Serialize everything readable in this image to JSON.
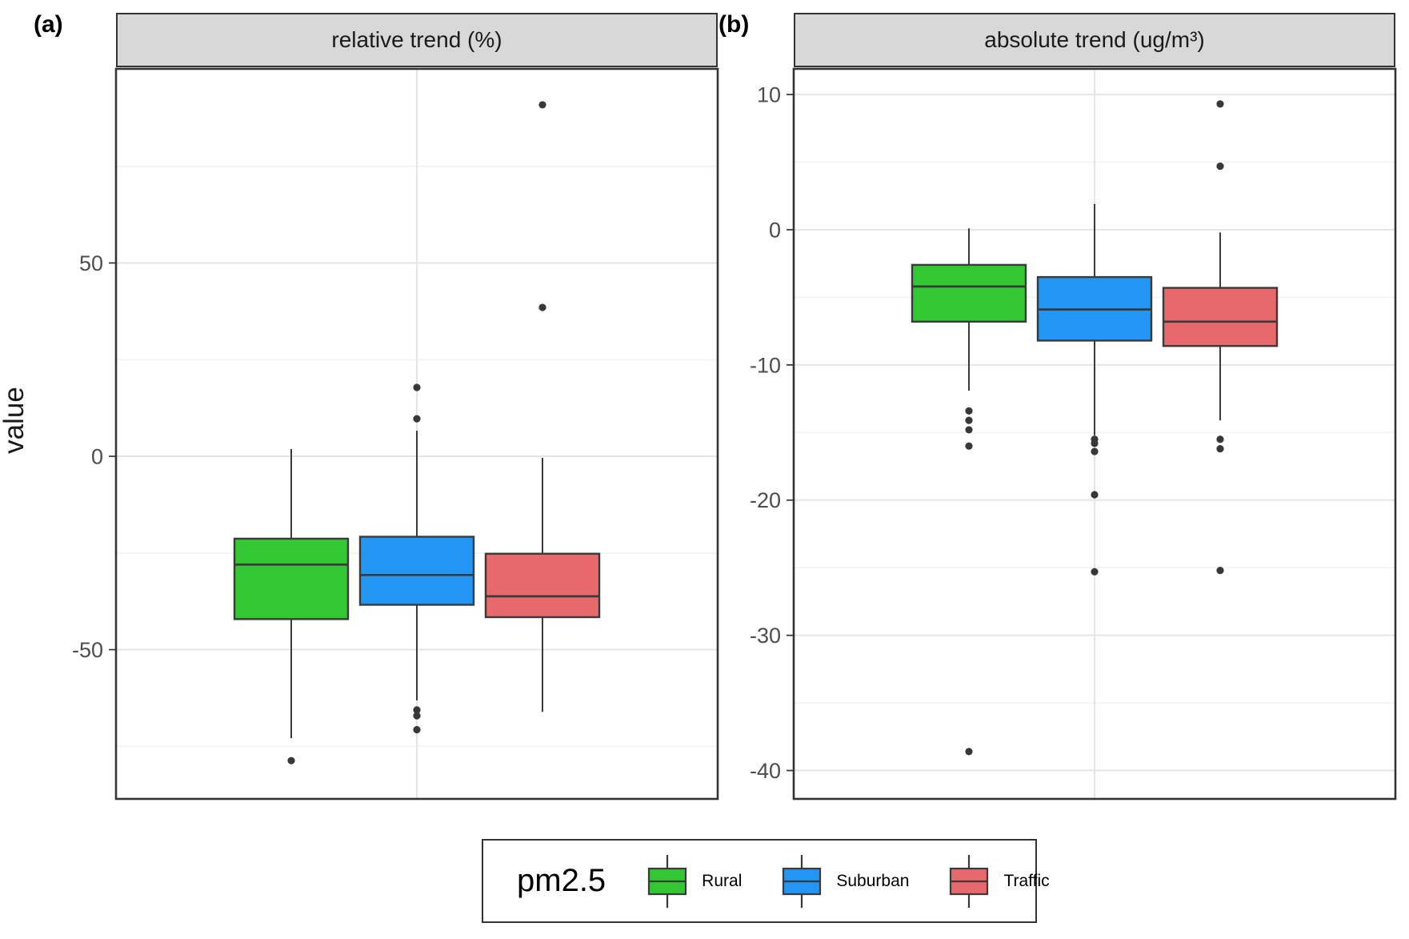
{
  "chart_data": {
    "type": "boxplot",
    "ylabel": "value",
    "legend": {
      "title": "pm2.5",
      "position": "bottom",
      "entries": [
        {
          "label": "Rural",
          "color": "#33C733"
        },
        {
          "label": "Suburban",
          "color": "#2395F3"
        },
        {
          "label": "Traffic",
          "color": "#E8696B"
        }
      ]
    },
    "colors": {
      "box_border": "#3A3A3A",
      "grid_major": "#E5E5E5",
      "grid_minor": "#F2F2F2",
      "strip_fill": "#D8D8D8",
      "panel_border": "#333333",
      "tick_label": "#4D4D4D",
      "outlier": "#383838",
      "background": "#FFFFFF"
    },
    "facets": [
      {
        "label": "(a)",
        "title": "relative trend (%)",
        "ylim": [
          -88.6,
          100.2
        ],
        "yticks": [
          50,
          0,
          -50
        ],
        "yticks_minor": [
          75,
          25,
          -25,
          -75
        ],
        "grid": true,
        "series": [
          {
            "name": "Rural",
            "color": "#33C733",
            "whisker_high": 1.9,
            "q3": -21.3,
            "median": -28.0,
            "q1": -42.1,
            "whisker_low": -72.9,
            "outliers": [
              -78.7
            ]
          },
          {
            "name": "Suburban",
            "color": "#2395F3",
            "whisker_high": 6.6,
            "q3": -20.8,
            "median": -30.7,
            "q1": -38.4,
            "whisker_low": -63.1,
            "outliers": [
              17.8,
              9.7,
              -65.6,
              -67.1,
              -70.7
            ]
          },
          {
            "name": "Traffic",
            "color": "#E8696B",
            "whisker_high": -0.4,
            "q3": -25.2,
            "median": -36.2,
            "q1": -41.6,
            "whisker_low": -66.1,
            "outliers": [
              90.9,
              38.5
            ]
          }
        ]
      },
      {
        "label": "(b)",
        "title": "absolute trend (ug/m³)",
        "ylim": [
          -42.1,
          11.9
        ],
        "yticks": [
          10,
          0,
          -10,
          -20,
          -30,
          -40
        ],
        "yticks_minor": [
          5,
          -5,
          -15,
          -25,
          -35
        ],
        "grid": true,
        "series": [
          {
            "name": "Rural",
            "color": "#33C733",
            "whisker_high": 0.1,
            "q3": -2.6,
            "median": -4.2,
            "q1": -6.8,
            "whisker_low": -11.9,
            "outliers": [
              -13.4,
              -14.1,
              -14.8,
              -16.0,
              -38.6
            ]
          },
          {
            "name": "Suburban",
            "color": "#2395F3",
            "whisker_high": 1.9,
            "q3": -3.5,
            "median": -5.9,
            "q1": -8.2,
            "whisker_low": -15.2,
            "outliers": [
              -15.5,
              -15.8,
              -16.4,
              -19.6,
              -25.3
            ]
          },
          {
            "name": "Traffic",
            "color": "#E8696B",
            "whisker_high": -0.2,
            "q3": -4.3,
            "median": -6.8,
            "q1": -8.6,
            "whisker_low": -14.1,
            "outliers": [
              9.3,
              4.7,
              -15.5,
              -16.2,
              -25.2
            ]
          }
        ]
      }
    ]
  }
}
